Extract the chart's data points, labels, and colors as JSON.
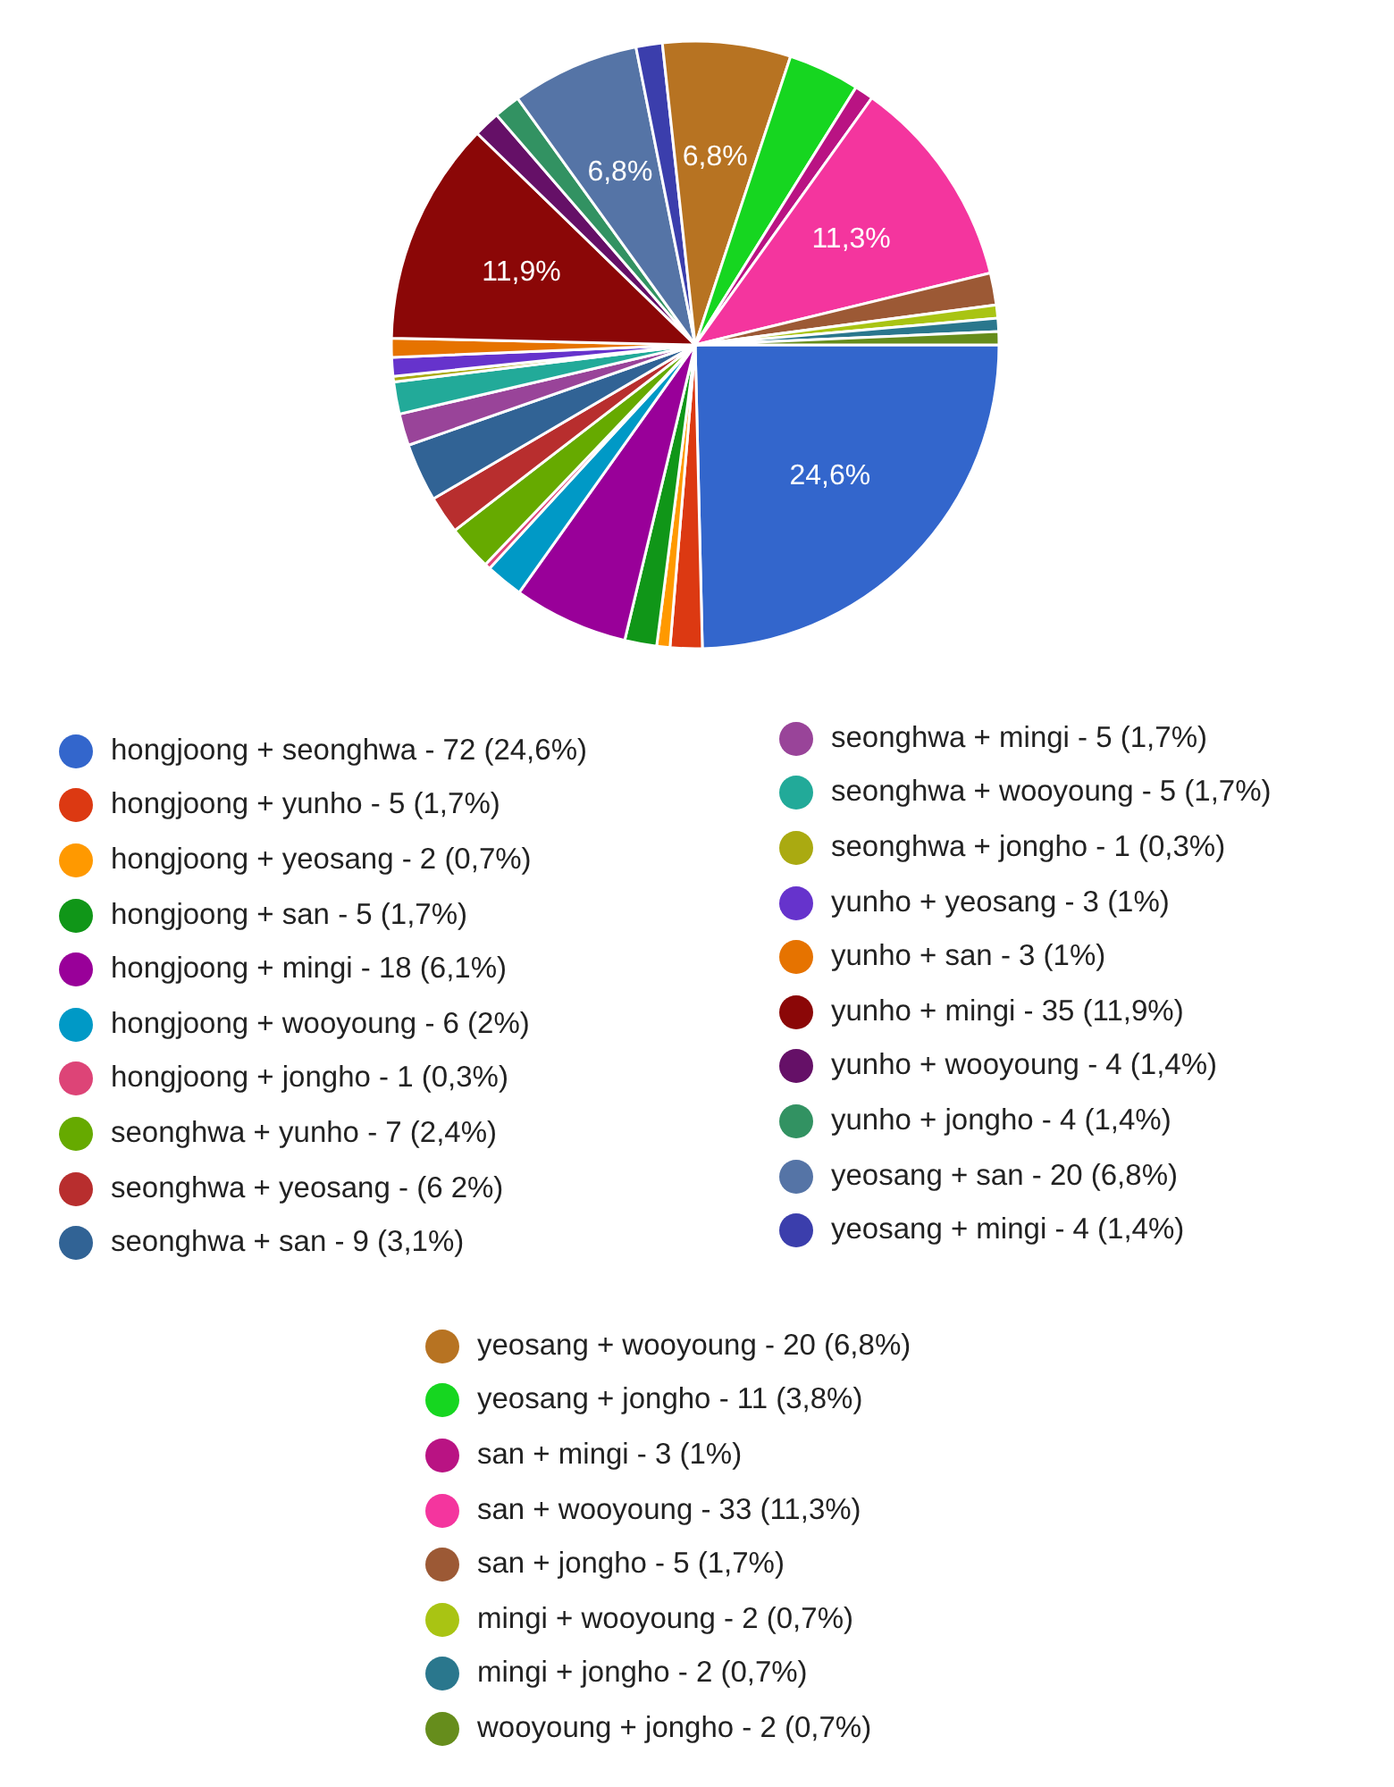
{
  "chart_data": {
    "type": "pie",
    "legend": "bottom",
    "categories": [
      "hongjoong + seonghwa - 72 (24,6%)",
      "hongjoong + yunho - 5 (1,7%)",
      "hongjoong + yeosang - 2 (0,7%)",
      "hongjoong + san - 5 (1,7%)",
      "hongjoong + mingi - 18 (6,1%)",
      "hongjoong + wooyoung - 6 (2%)",
      "hongjoong + jongho - 1 (0,3%)",
      "seonghwa + yunho - 7 (2,4%)",
      "seonghwa + yeosang - (6 2%)",
      "seonghwa + san - 9 (3,1%)",
      "seonghwa + mingi - 5 (1,7%)",
      "seonghwa + wooyoung - 5 (1,7%)",
      "seonghwa + jongho - 1 (0,3%)",
      "yunho + yeosang - 3 (1%)",
      "yunho + san - 3 (1%)",
      "yunho + mingi - 35 (11,9%)",
      "yunho + wooyoung - 4 (1,4%)",
      "yunho + jongho - 4 (1,4%)",
      "yeosang + san - 20 (6,8%)",
      "yeosang + mingi - 4 (1,4%)",
      "yeosang + wooyoung - 20 (6,8%)",
      "yeosang + jongho - 11 (3,8%)",
      "san + mingi - 3 (1%)",
      "san + wooyoung - 33 (11,3%)",
      "san + jongho - 5 (1,7%)",
      "mingi + wooyoung - 2 (0,7%)",
      "mingi + jongho - 2 (0,7%)",
      "wooyoung + jongho - 2 (0,7%)"
    ],
    "values": [
      24.6,
      1.7,
      0.7,
      1.7,
      6.1,
      2,
      0.3,
      2.4,
      2,
      3.1,
      1.7,
      1.7,
      0.3,
      1,
      1,
      11.9,
      1.4,
      1.4,
      6.8,
      1.4,
      6.8,
      3.8,
      1,
      11.3,
      1.7,
      0.7,
      0.7,
      0.7
    ],
    "colors": [
      "#3366cc",
      "#dc3912",
      "#ff9900",
      "#109618",
      "#990099",
      "#0099c6",
      "#dd4477",
      "#66aa00",
      "#b82e2e",
      "#316395",
      "#994499",
      "#22aa99",
      "#aaaa11",
      "#6633cc",
      "#e67300",
      "#8b0707",
      "#651067",
      "#329262",
      "#5574a6",
      "#3b3eac",
      "#b77322",
      "#16d620",
      "#b91383",
      "#f4359e",
      "#9c5935",
      "#a9c413",
      "#2a778d",
      "#668d1c"
    ],
    "value_labels": [
      "24,6%",
      null,
      null,
      null,
      null,
      null,
      null,
      null,
      null,
      null,
      null,
      null,
      null,
      null,
      null,
      "11,9%",
      null,
      null,
      "6,8%",
      null,
      "6,8%",
      null,
      null,
      "11,3%",
      null,
      null,
      null,
      null
    ]
  }
}
